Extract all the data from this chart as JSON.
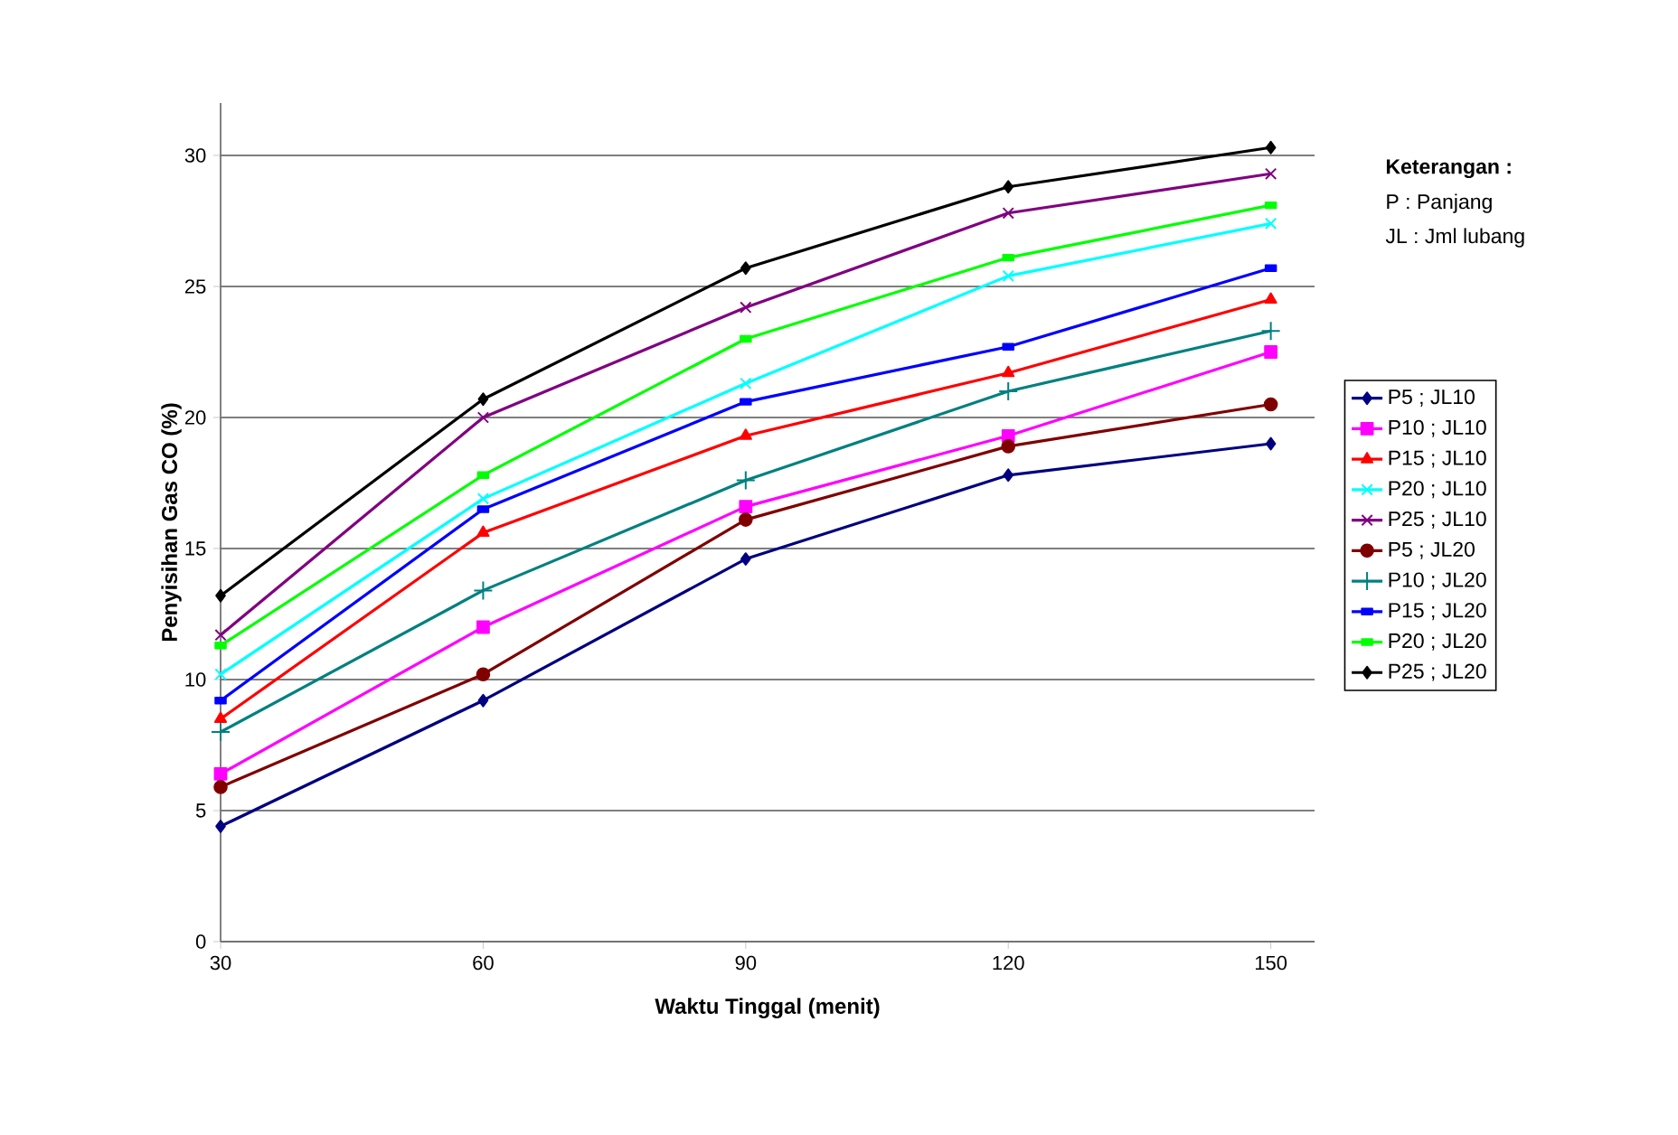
{
  "chart_data": {
    "type": "line",
    "xlabel": "Waktu Tinggal (menit)",
    "ylabel": "Penyisihan Gas CO (%)",
    "x": [
      30,
      60,
      90,
      120,
      150
    ],
    "xlim": [
      30,
      155
    ],
    "xticks": [
      30,
      60,
      90,
      120,
      150
    ],
    "ylim": [
      0,
      32
    ],
    "yticks": [
      0,
      5,
      10,
      15,
      20,
      25,
      30
    ],
    "grid": "y",
    "legend": "right",
    "line_style": "solid",
    "annotations": [
      "Keterangan :",
      "P : Panjang",
      "JL : Jml lubang"
    ],
    "series": [
      {
        "name": "P5 ; JL10",
        "color": "#000080",
        "marker": "diamond",
        "values": [
          4.4,
          9.2,
          14.6,
          17.8,
          19.0
        ]
      },
      {
        "name": "P10 ; JL10",
        "color": "#ff00ff",
        "marker": "square",
        "values": [
          6.4,
          12.0,
          16.6,
          19.3,
          22.5
        ]
      },
      {
        "name": "P15 ; JL10",
        "color": "#ff0000",
        "marker": "triangle",
        "values": [
          8.5,
          15.6,
          19.3,
          21.7,
          24.5
        ]
      },
      {
        "name": "P20 ; JL10",
        "color": "#00ffff",
        "marker": "cross",
        "values": [
          10.2,
          16.9,
          21.3,
          25.4,
          27.4
        ]
      },
      {
        "name": "P25 ; JL10",
        "color": "#800080",
        "marker": "cross",
        "values": [
          11.7,
          20.0,
          24.2,
          27.8,
          29.3
        ]
      },
      {
        "name": "P5 ; JL20",
        "color": "#800000",
        "marker": "circle",
        "values": [
          5.9,
          10.2,
          16.1,
          18.9,
          20.5
        ]
      },
      {
        "name": "P10 ; JL20",
        "color": "#008080",
        "marker": "plus",
        "values": [
          8.0,
          13.4,
          17.6,
          21.0,
          23.3
        ]
      },
      {
        "name": "P15 ; JL20",
        "color": "#0000ff",
        "marker": "square",
        "values": [
          9.2,
          16.5,
          20.6,
          22.7,
          25.7
        ]
      },
      {
        "name": "P20 ; JL20",
        "color": "#00ff00",
        "marker": "square",
        "values": [
          11.3,
          17.8,
          23.0,
          26.1,
          28.1
        ]
      },
      {
        "name": "P25 ; JL20",
        "color": "#000000",
        "marker": "diamond",
        "values": [
          13.2,
          20.7,
          25.7,
          28.8,
          30.3
        ]
      }
    ]
  }
}
